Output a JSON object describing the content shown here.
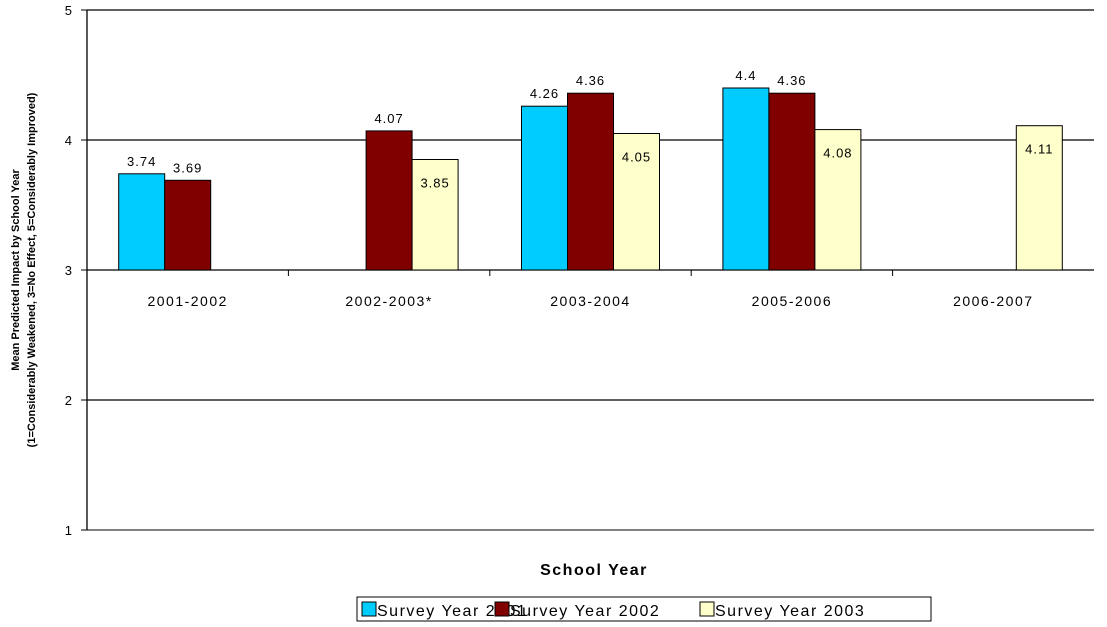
{
  "chart_data": {
    "type": "bar",
    "title": "",
    "xlabel": "School Year",
    "ylabel_line1": "Mean Predicted Impact by School Year",
    "ylabel_line2": "(1=Considerably Weakened, 3=No Effect, 5=Considerably Improved)",
    "ylim": [
      1,
      5
    ],
    "yticks": [
      "1",
      "2",
      "3",
      "4",
      "5"
    ],
    "baseline": 3,
    "grid": true,
    "legend_position": "bottom",
    "categories": [
      "2001-2002",
      "2002-2003*",
      "2003-2004",
      "2005-2006",
      "2006-2007"
    ],
    "series": [
      {
        "name": "Survey Year 2001",
        "color": "#00ccff",
        "values": [
          3.74,
          null,
          4.26,
          4.4,
          null
        ],
        "labels": [
          "3.74",
          "",
          "4.26",
          "4.4",
          ""
        ]
      },
      {
        "name": "Survey Year 2002",
        "color": "#800000",
        "values": [
          3.69,
          4.07,
          4.36,
          4.36,
          null
        ],
        "labels": [
          "3.69",
          "4.07",
          "4.36",
          "4.36",
          ""
        ]
      },
      {
        "name": "Survey Year 2003",
        "color": "#ffffcc",
        "values": [
          null,
          3.85,
          4.05,
          4.08,
          4.11
        ],
        "labels": [
          "",
          "3.85",
          "4.05",
          "4.08",
          "4.11"
        ]
      }
    ]
  }
}
